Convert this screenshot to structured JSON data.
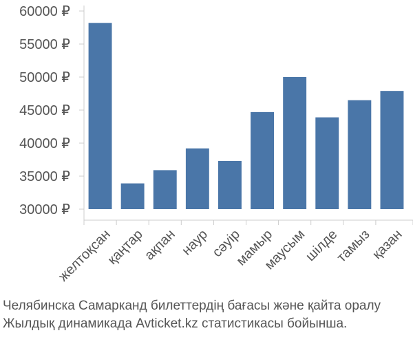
{
  "chart_data": {
    "type": "bar",
    "categories": [
      "желтоқсан",
      "қаңтар",
      "ақпан",
      "наур",
      "сәуір",
      "мамыр",
      "маусым",
      "шілде",
      "тамыз",
      "қазан"
    ],
    "values": [
      58200,
      33900,
      35900,
      39200,
      37300,
      44700,
      50000,
      43900,
      46500,
      47900
    ],
    "y_tick_labels": [
      "30000 ₽",
      "35000 ₽",
      "40000 ₽",
      "45000 ₽",
      "50000 ₽",
      "55000 ₽",
      "60000 ₽"
    ],
    "y_ticks": [
      30000,
      35000,
      40000,
      45000,
      50000,
      55000,
      60000
    ],
    "ylim": [
      30000,
      61000
    ],
    "grid": false,
    "bar_color": "#4a76a8",
    "axis_color": "#cccccc",
    "text_color": "#555555"
  },
  "caption": {
    "line1": "Челябинска Самарканд билеттердің бағасы және қайта оралу",
    "line2": "Жылдық динамикада Avticket.kz статистикасы бойынша."
  }
}
